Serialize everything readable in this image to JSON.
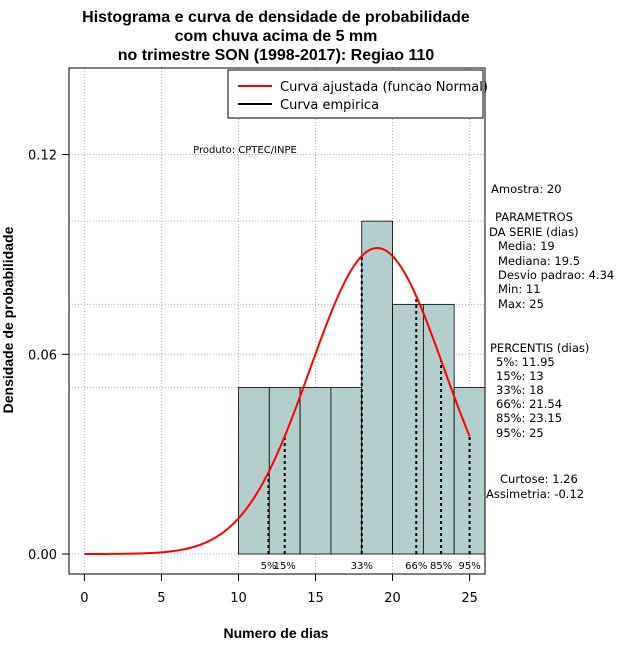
{
  "chart_data": {
    "type": "histogram",
    "title_lines": [
      "Histograma e curva de densidade de probabilidade",
      "com chuva acima de 5 mm",
      "no trimestre SON (1998-2017): Regiao 110"
    ],
    "xlabel": "Numero de dias",
    "ylabel": "Densidade de probabilidade",
    "xlim": [
      -1,
      26
    ],
    "ylim": [
      -0.006,
      0.146
    ],
    "x_ticks": [
      0,
      5,
      10,
      15,
      20,
      25
    ],
    "y_ticks": [
      0.0,
      0.06,
      0.12
    ],
    "y_tick_labels": [
      "0.00",
      "0.06",
      "0.12"
    ],
    "grid": true,
    "bars": [
      {
        "x0": 10,
        "x1": 12,
        "density": 0.05
      },
      {
        "x0": 12,
        "x1": 14,
        "density": 0.05
      },
      {
        "x0": 14,
        "x1": 16,
        "density": 0.05
      },
      {
        "x0": 16,
        "x1": 18,
        "density": 0.05
      },
      {
        "x0": 18,
        "x1": 20,
        "density": 0.1
      },
      {
        "x0": 20,
        "x1": 22,
        "density": 0.075
      },
      {
        "x0": 22,
        "x1": 24,
        "density": 0.075
      },
      {
        "x0": 24,
        "x1": 26,
        "density": 0.05
      }
    ],
    "normal_curve": {
      "mean": 19,
      "sd": 4.34,
      "x_from": 0,
      "x_to": 25
    },
    "percentile_lines": [
      {
        "label": "5%",
        "x": 11.95
      },
      {
        "label": "15%",
        "x": 13
      },
      {
        "label": "33%",
        "x": 18
      },
      {
        "label": "66%",
        "x": 21.54
      },
      {
        "label": "85%",
        "x": 23.15
      },
      {
        "label": "95%",
        "x": 25
      }
    ],
    "legend": {
      "placement": "top-right",
      "entries": [
        {
          "name": "Curva ajustada (funcao Normal)",
          "color": "#ff0000"
        },
        {
          "name": "Curva empirica",
          "color": "#000000"
        }
      ]
    },
    "annotation": "Produto: CPTEC/INPE",
    "side_panel": {
      "amostra": "Amostra: 20",
      "parametros_header": [
        "PARAMETROS",
        "DA SERIE (dias)"
      ],
      "parametros": [
        "Media: 19",
        "Mediana: 19.5",
        "Desvio padrao: 4.34",
        "Min: 11",
        "Max: 25"
      ],
      "percentis_header": "PERCENTIS (dias)",
      "percentis": [
        "5%: 11.95",
        "15%: 13",
        "33%: 18",
        "66%: 21.54",
        "85%: 23.15",
        "95%: 25"
      ],
      "curtose": "Curtose: 1.26",
      "assimetria": "Assimetria: -0.12"
    },
    "colors": {
      "bar_fill": "#b4cecd",
      "curve": "#ff0000",
      "grid": "#b0b0b0"
    }
  }
}
